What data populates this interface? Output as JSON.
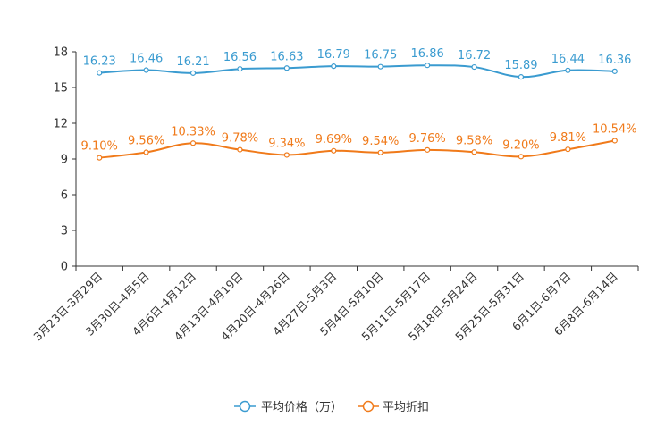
{
  "chart_data": {
    "type": "line",
    "categories": [
      "3月23日-3月29日",
      "3月30日-4月5日",
      "4月6日-4月12日",
      "4月13日-4月19日",
      "4月20日-4月26日",
      "4月27日-5月3日",
      "5月4日-5月10日",
      "5月11日-5月17日",
      "5月18日-5月24日",
      "5月25日-5月31日",
      "6月1日-6月7日",
      "6月8日-6月14日"
    ],
    "series": [
      {
        "name": "平均价格（万）",
        "color": "#3a9bd0",
        "values": [
          16.23,
          16.46,
          16.21,
          16.56,
          16.63,
          16.79,
          16.75,
          16.86,
          16.72,
          15.89,
          16.44,
          16.36
        ],
        "labels": [
          "16.23",
          "16.46",
          "16.21",
          "16.56",
          "16.63",
          "16.79",
          "16.75",
          "16.86",
          "16.72",
          "15.89",
          "16.44",
          "16.36"
        ]
      },
      {
        "name": "平均折扣",
        "color": "#f07a1a",
        "values": [
          9.1,
          9.56,
          10.33,
          9.78,
          9.34,
          9.69,
          9.54,
          9.76,
          9.58,
          9.2,
          9.81,
          10.54
        ],
        "labels": [
          "9.10%",
          "9.56%",
          "10.33%",
          "9.78%",
          "9.34%",
          "9.69%",
          "9.54%",
          "9.76%",
          "9.58%",
          "9.20%",
          "9.81%",
          "10.54%"
        ]
      }
    ],
    "y_ticks": [
      "0",
      "3",
      "6",
      "9",
      "12",
      "15",
      "18"
    ],
    "ylim": [
      0,
      18
    ],
    "title": "",
    "xlabel": "",
    "ylabel": "",
    "legend_position": "bottom-center"
  }
}
